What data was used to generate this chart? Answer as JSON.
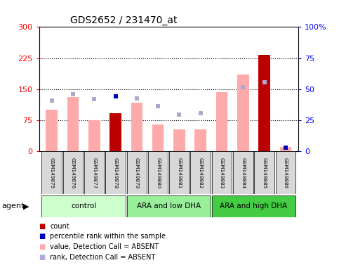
{
  "title": "GDS2652 / 231470_at",
  "samples": [
    "GSM149875",
    "GSM149876",
    "GSM149877",
    "GSM149878",
    "GSM149879",
    "GSM149880",
    "GSM149881",
    "GSM149882",
    "GSM149883",
    "GSM149884",
    "GSM149885",
    "GSM149886"
  ],
  "groups": [
    {
      "label": "control",
      "color": "#ccffcc",
      "start": 0,
      "end": 3
    },
    {
      "label": "ARA and low DHA",
      "color": "#99ee99",
      "start": 4,
      "end": 7
    },
    {
      "label": "ARA and high DHA",
      "color": "#44cc44",
      "start": 8,
      "end": 11
    }
  ],
  "bar_values": [
    100,
    130,
    75,
    92,
    118,
    65,
    52,
    52,
    143,
    185,
    232,
    10
  ],
  "bar_colors": [
    "#ffaaaa",
    "#ffaaaa",
    "#ffaaaa",
    "#bb0000",
    "#ffaaaa",
    "#ffaaaa",
    "#ffaaaa",
    "#ffaaaa",
    "#ffaaaa",
    "#ffaaaa",
    "#bb0000",
    "#ffaaaa"
  ],
  "rank_squares": [
    122,
    138,
    125,
    132,
    128,
    108,
    88,
    92,
    null,
    155,
    167,
    8
  ],
  "rank_is_dark": [
    false,
    false,
    false,
    true,
    false,
    false,
    false,
    false,
    false,
    false,
    false,
    true
  ],
  "left_ylim": [
    0,
    300
  ],
  "right_ylim": [
    0,
    100
  ],
  "left_yticks": [
    0,
    75,
    150,
    225,
    300
  ],
  "right_yticks": [
    0,
    25,
    50,
    75,
    100
  ],
  "right_yticklabels": [
    "0",
    "25",
    "50",
    "75",
    "100%"
  ],
  "left_yticklabels": [
    "0",
    "75",
    "150",
    "225",
    "300"
  ],
  "dotted_lines": [
    75,
    150,
    225
  ],
  "legend_colors": [
    "#bb0000",
    "#0000bb",
    "#ffaaaa",
    "#aaaadd"
  ],
  "legend_labels": [
    "count",
    "percentile rank within the sample",
    "value, Detection Call = ABSENT",
    "rank, Detection Call = ABSENT"
  ],
  "agent_label": "agent"
}
